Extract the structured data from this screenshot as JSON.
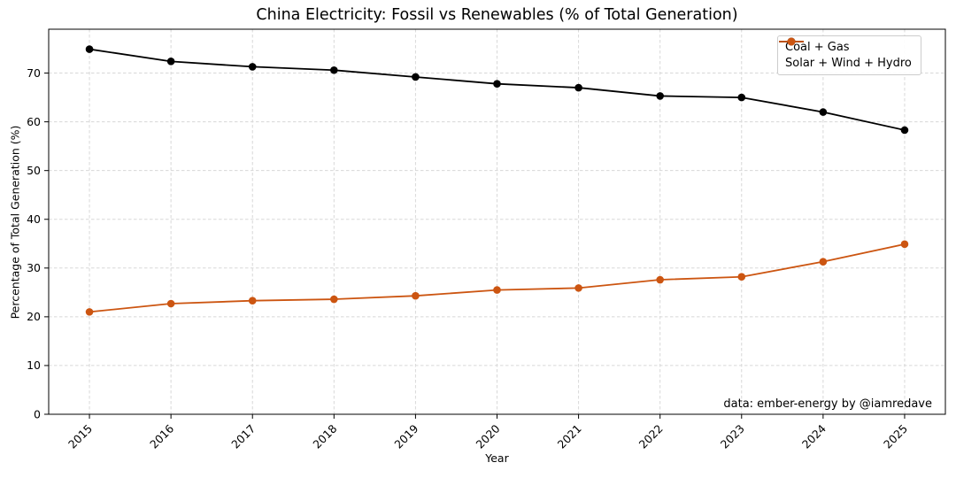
{
  "chart_data": {
    "type": "line",
    "title": "China Electricity: Fossil vs Renewables (% of Total Generation)",
    "xlabel": "Year",
    "ylabel": "Percentage of Total Generation (%)",
    "categories": [
      "2015",
      "2016",
      "2017",
      "2018",
      "2019",
      "2020",
      "2021",
      "2022",
      "2023",
      "2024",
      "2025"
    ],
    "series": [
      {
        "name": "Coal + Gas",
        "color": "#000000",
        "values": [
          74.9,
          72.4,
          71.3,
          70.6,
          69.2,
          67.8,
          67.0,
          65.3,
          65.0,
          62.0,
          58.3
        ]
      },
      {
        "name": "Solar + Wind + Hydro",
        "color": "#cc5511",
        "values": [
          21.0,
          22.7,
          23.3,
          23.6,
          24.3,
          25.5,
          25.9,
          27.6,
          28.2,
          31.3,
          34.9
        ]
      }
    ],
    "ylim": [
      0,
      79
    ],
    "yticks": [
      0,
      10,
      20,
      30,
      40,
      50,
      60,
      70
    ],
    "grid": true,
    "grid_style": "dashed",
    "legend_position": "upper right",
    "annotation": "data: ember-energy by @iamredave"
  },
  "colors": {
    "grid": "#d8d8d8",
    "spine": "#000000",
    "tick_label": "#000000",
    "legend_border": "#cccccc"
  }
}
